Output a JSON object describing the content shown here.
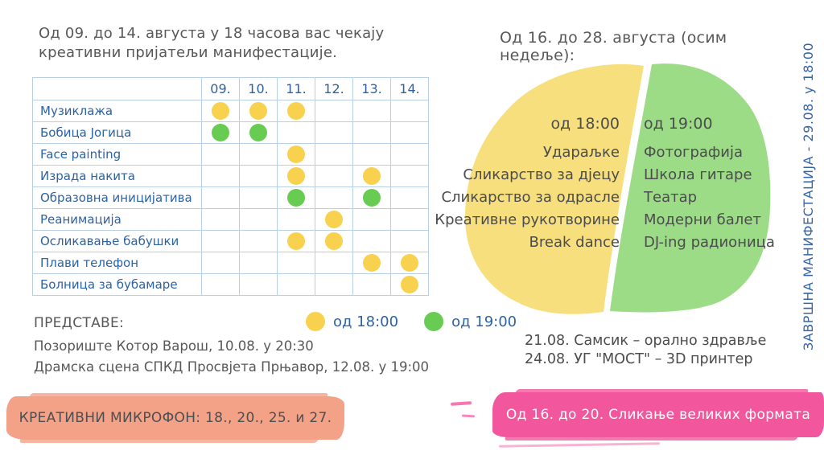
{
  "left_section": {
    "heading_lines": [
      "Од 09. до 14. августа  у 18 часова вас чекају",
      "креативни пријатељи манифестације."
    ]
  },
  "schedule_table": {
    "columns": [
      "09.",
      "10.",
      "11.",
      "12.",
      "13.",
      "14."
    ],
    "rows": [
      {
        "label": "Музиклажа",
        "cells": [
          "y",
          "y",
          "y",
          "",
          "",
          ""
        ]
      },
      {
        "label": "Бобица Јогица",
        "cells": [
          "g",
          "g",
          "",
          "",
          "",
          ""
        ]
      },
      {
        "label": "Face painting",
        "cells": [
          "",
          "",
          "y",
          "",
          "",
          ""
        ]
      },
      {
        "label": "Израда накита",
        "cells": [
          "",
          "",
          "y",
          "",
          "y",
          ""
        ]
      },
      {
        "label": "Образовна иницијатива",
        "cells": [
          "",
          "",
          "g",
          "",
          "g",
          ""
        ]
      },
      {
        "label": "Реанимација",
        "cells": [
          "",
          "",
          "",
          "y",
          "",
          ""
        ]
      },
      {
        "label": "Осликавање бабушки",
        "cells": [
          "",
          "",
          "y",
          "y",
          "",
          ""
        ]
      },
      {
        "label": "Плави телефон",
        "cells": [
          "",
          "",
          "",
          "",
          "y",
          "y"
        ]
      },
      {
        "label": "Болница за бубамаре",
        "cells": [
          "",
          "",
          "",
          "",
          "",
          "y"
        ]
      }
    ]
  },
  "legend": {
    "items": [
      {
        "color": "yellow",
        "label": "од 18:00"
      },
      {
        "color": "green",
        "label": "од 19:00"
      }
    ]
  },
  "performances": {
    "title": "ПРЕДСТАВЕ:",
    "items": [
      "Позориште Котор Варош, 10.08. у 20:30",
      "Драмска сцена СПКД Просвјета Прњавор, 12.08. у 19:00"
    ]
  },
  "right_section": {
    "heading": "Од 16. до 28. августа (осим недеље):",
    "yellow_group": {
      "time": "од 18:00",
      "items": [
        "Удараљке",
        "Сликарство за дјецу",
        "Сликарство за одрасле",
        "Креативне рукотворине",
        "Break dance"
      ]
    },
    "green_group": {
      "time": "од 19:00",
      "items": [
        "Фотографија",
        "Школа гитаре",
        "Театар",
        "Модерни балет",
        "DJ-ing радионица"
      ]
    },
    "special_events": [
      "21.08. Самсик – орално здравље",
      "24.08. УГ \"МОСТ\" – 3D принтер"
    ]
  },
  "vertical_banner": "ЗАВРШНА МАНИФЕСТАЦИЈА - 29.08. у 18:00",
  "banners": {
    "orange": "КРЕАТИВНИ МИКРОФОН:  18., 20., 25. и 27.",
    "pink": "Од 16. до 20. Сликање великих формата"
  },
  "colors": {
    "dot_yellow": "#f8d14f",
    "dot_green": "#69cc52",
    "blob_yellow": "#f7df7e",
    "blob_green": "#9cdc86",
    "table_border": "#b9cfe8",
    "blue_text": "#2d62a3",
    "gray_text": "#57585a",
    "orange_banner": "#f3a288",
    "pink_banner": "#f2569c",
    "vertical_text": "#3565a8"
  }
}
